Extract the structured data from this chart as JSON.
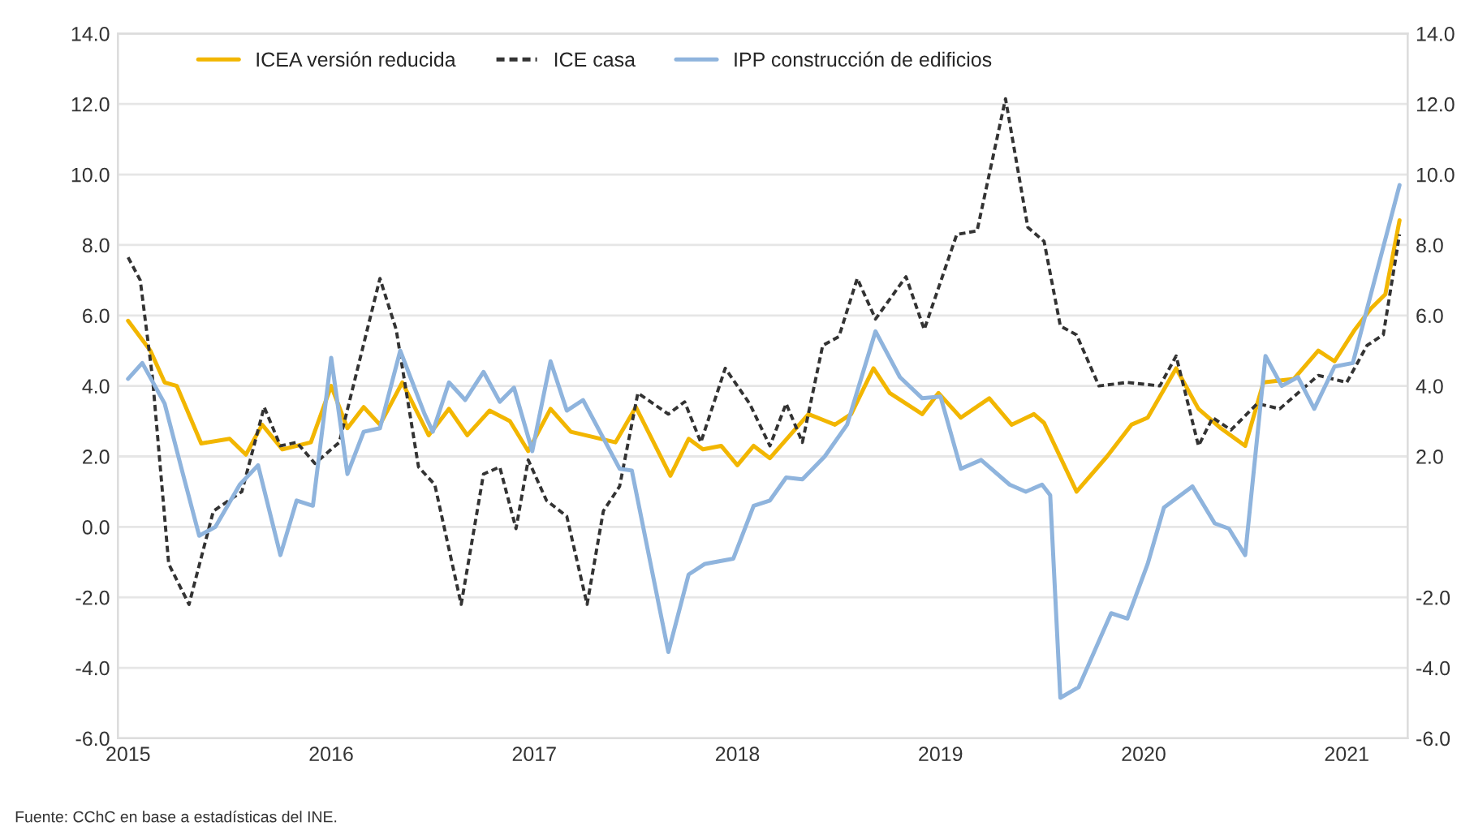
{
  "chart_data": {
    "type": "line",
    "annotations": [
      "Fuente: CChC en base a estadísticas del INE."
    ],
    "xlim": [
      2014.95,
      2021.3
    ],
    "xticks": [
      2015,
      2016,
      2017,
      2018,
      2019,
      2020,
      2021
    ],
    "ylim": [
      -6,
      14
    ],
    "yticks": [
      {
        "value": -6,
        "label": "-6.0"
      },
      {
        "value": -4,
        "label": "-4.0"
      },
      {
        "value": -2,
        "label": "-2.0"
      },
      {
        "value": 0,
        "label": "0.0"
      },
      {
        "value": 2,
        "label": "2.0"
      },
      {
        "value": 4,
        "label": "4.0"
      },
      {
        "value": 6,
        "label": "6.0"
      },
      {
        "value": 8,
        "label": "8.0"
      },
      {
        "value": 10,
        "label": "10.0"
      },
      {
        "value": 12,
        "label": "12.0"
      },
      {
        "value": 14,
        "label": "14.0"
      }
    ],
    "y2lim": [
      -6,
      14
    ],
    "y2ticks": [
      {
        "value": -6,
        "label": "-6.0"
      },
      {
        "value": -4,
        "label": "-4.0"
      },
      {
        "value": -2,
        "label": "-2.0"
      },
      {
        "value": 0,
        "label": null
      },
      {
        "value": 2,
        "label": "2.0"
      },
      {
        "value": 4,
        "label": "4.0"
      },
      {
        "value": 6,
        "label": "6.0"
      },
      {
        "value": 8,
        "label": "8.0"
      },
      {
        "value": 10,
        "label": "10.0"
      },
      {
        "value": 12,
        "label": "12.0"
      },
      {
        "value": 14,
        "label": "14.0"
      }
    ],
    "grid": "y",
    "legend": "top",
    "series": [
      {
        "name": "ICEA versión reducida",
        "color": "#f2b600",
        "line_style": "solid",
        "x": [
          2015.0,
          2015.11,
          2015.18,
          2015.24,
          2015.36,
          2015.5,
          2015.58,
          2015.66,
          2015.76,
          2015.9,
          2016.0,
          2016.08,
          2016.16,
          2016.24,
          2016.35,
          2016.48,
          2016.58,
          2016.67,
          2016.78,
          2016.88,
          2016.97,
          2017.08,
          2017.18,
          2017.4,
          2017.5,
          2017.67,
          2017.76,
          2017.83,
          2017.92,
          2018.0,
          2018.08,
          2018.16,
          2018.35,
          2018.48,
          2018.56,
          2018.67,
          2018.75,
          2018.91,
          2018.99,
          2019.1,
          2019.24,
          2019.35,
          2019.46,
          2019.51,
          2019.67,
          2019.82,
          2019.94,
          2020.02,
          2020.16,
          2020.27,
          2020.38,
          2020.5,
          2020.59,
          2020.74,
          2020.86,
          2020.94,
          2021.04,
          2021.12,
          2021.19,
          2021.26
        ],
        "values": [
          5.85,
          5.0,
          4.1,
          4.0,
          2.37,
          2.5,
          2.05,
          2.9,
          2.2,
          2.4,
          4.0,
          2.8,
          3.4,
          2.9,
          4.1,
          2.6,
          3.35,
          2.6,
          3.3,
          3.0,
          2.15,
          3.35,
          2.7,
          2.4,
          3.4,
          1.45,
          2.5,
          2.2,
          2.3,
          1.75,
          2.3,
          1.95,
          3.2,
          2.9,
          3.2,
          4.5,
          3.8,
          3.2,
          3.8,
          3.1,
          3.65,
          2.9,
          3.2,
          2.95,
          1.0,
          2.0,
          2.9,
          3.1,
          4.5,
          3.35,
          2.8,
          2.3,
          4.1,
          4.2,
          5.0,
          4.7,
          5.6,
          6.2,
          6.6,
          8.7
        ]
      },
      {
        "name": "ICE casa",
        "color": "#333333",
        "line_style": "dashed",
        "x": [
          2015.0,
          2015.06,
          2015.12,
          2015.2,
          2015.3,
          2015.42,
          2015.56,
          2015.67,
          2015.75,
          2015.83,
          2015.92,
          2016.04,
          2016.24,
          2016.32,
          2016.43,
          2016.51,
          2016.64,
          2016.75,
          2016.83,
          2016.91,
          2016.97,
          2017.06,
          2017.16,
          2017.26,
          2017.34,
          2017.42,
          2017.51,
          2017.66,
          2017.74,
          2017.82,
          2017.94,
          2018.06,
          2018.16,
          2018.24,
          2018.32,
          2018.42,
          2018.5,
          2018.59,
          2018.68,
          2018.83,
          2018.92,
          2019.08,
          2019.18,
          2019.32,
          2019.43,
          2019.51,
          2019.59,
          2019.67,
          2019.78,
          2019.92,
          2020.08,
          2020.16,
          2020.27,
          2020.34,
          2020.43,
          2020.56,
          2020.67,
          2020.86,
          2021.0,
          2021.1,
          2021.18,
          2021.26
        ],
        "values": [
          7.65,
          7.0,
          4.25,
          -1.05,
          -2.2,
          0.45,
          1.0,
          3.4,
          2.3,
          2.4,
          1.8,
          2.4,
          7.05,
          5.6,
          1.7,
          1.2,
          -2.2,
          1.5,
          1.7,
          -0.05,
          1.9,
          0.75,
          0.3,
          -2.2,
          0.45,
          1.15,
          3.8,
          3.2,
          3.55,
          2.4,
          4.5,
          3.5,
          2.3,
          3.5,
          2.4,
          5.15,
          5.4,
          7.05,
          5.9,
          7.1,
          5.6,
          8.3,
          8.4,
          12.15,
          8.5,
          8.1,
          5.7,
          5.45,
          4.0,
          4.1,
          4.0,
          4.85,
          2.3,
          3.1,
          2.75,
          3.5,
          3.35,
          4.3,
          4.1,
          5.15,
          5.45,
          8.3
        ]
      },
      {
        "name": "IPP construcción de edificios",
        "color": "#8fb4dd",
        "line_style": "solid",
        "x": [
          2015.0,
          2015.07,
          2015.18,
          2015.27,
          2015.35,
          2015.43,
          2015.55,
          2015.64,
          2015.75,
          2015.83,
          2015.91,
          2016.0,
          2016.08,
          2016.16,
          2016.24,
          2016.34,
          2016.46,
          2016.5,
          2016.58,
          2016.66,
          2016.75,
          2016.83,
          2016.9,
          2016.99,
          2017.08,
          2017.16,
          2017.24,
          2017.42,
          2017.48,
          2017.66,
          2017.76,
          2017.84,
          2017.98,
          2018.08,
          2018.16,
          2018.24,
          2018.32,
          2018.43,
          2018.54,
          2018.68,
          2018.8,
          2018.91,
          2019.0,
          2019.1,
          2019.2,
          2019.34,
          2019.42,
          2019.5,
          2019.54,
          2019.59,
          2019.68,
          2019.84,
          2019.92,
          2020.02,
          2020.1,
          2020.24,
          2020.35,
          2020.42,
          2020.5,
          2020.6,
          2020.68,
          2020.76,
          2020.84,
          2020.94,
          2021.03,
          2021.26
        ],
        "values": [
          4.2,
          4.65,
          3.5,
          1.5,
          -0.25,
          0.0,
          1.2,
          1.75,
          -0.8,
          0.75,
          0.6,
          4.8,
          1.5,
          2.7,
          2.8,
          5.0,
          3.2,
          2.7,
          4.1,
          3.6,
          4.4,
          3.55,
          3.95,
          2.15,
          4.7,
          3.3,
          3.6,
          1.65,
          1.6,
          -3.55,
          -1.35,
          -1.05,
          -0.9,
          0.6,
          0.75,
          1.4,
          1.35,
          2.0,
          2.9,
          5.55,
          4.25,
          3.65,
          3.7,
          1.65,
          1.9,
          1.2,
          1.0,
          1.2,
          0.9,
          -4.85,
          -4.55,
          -2.45,
          -2.6,
          -1.05,
          0.55,
          1.15,
          0.1,
          -0.05,
          -0.8,
          4.85,
          4.0,
          4.25,
          3.35,
          4.55,
          4.65,
          9.7
        ]
      }
    ]
  }
}
